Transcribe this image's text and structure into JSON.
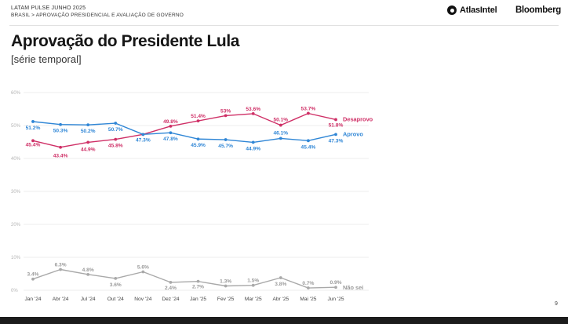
{
  "header": {
    "top": "LATAM PULSE JUNHO 2025",
    "breadcrumb": "BRASIL > APROVAÇÃO PRESIDENCIAL E AVALIAÇÃO DE GOVERNO",
    "logo_atlas": "AtlasIntel",
    "logo_bloomberg": "Bloomberg"
  },
  "title": "Aprovação do Presidente Lula",
  "subtitle": "[série temporal]",
  "page_number": "9",
  "colors": {
    "desaprovo": "#cf2f66",
    "aprovo": "#2f86d6",
    "nao_sei": "#a9a9a9",
    "grid": "#e7e7e7"
  },
  "chart_data": {
    "type": "line",
    "categories": [
      "Jan '24",
      "Abr '24",
      "Jul '24",
      "Out '24",
      "Nov '24",
      "Dez '24",
      "Jan '25",
      "Fev '25",
      "Mar '25",
      "Abr '25",
      "Mai '25",
      "Jun '25"
    ],
    "y_ticks": [
      "0%",
      "10%",
      "20%",
      "30%",
      "40%",
      "50%",
      "60%"
    ],
    "ylim": [
      0,
      60
    ],
    "grid": true,
    "legend": "right-end labels",
    "series": [
      {
        "name": "Desaprovo",
        "key": "desaprovo",
        "values": [
          45.4,
          43.4,
          44.9,
          45.8,
          47.3,
          49.8,
          51.4,
          53.0,
          53.6,
          50.1,
          53.7,
          51.8
        ],
        "labels": [
          "45.4%",
          "43.4%",
          "44.9%",
          "45.8%",
          "",
          "49.8%",
          "51.4%",
          "53%",
          "53.6%",
          "50.1%",
          "53.7%",
          "51.8%"
        ]
      },
      {
        "name": "Aprovo",
        "key": "aprovo",
        "values": [
          51.2,
          50.3,
          50.2,
          50.7,
          47.3,
          47.8,
          45.9,
          45.7,
          44.9,
          46.1,
          45.4,
          47.3
        ],
        "labels": [
          "51.2%",
          "50.3%",
          "50.2%",
          "50.7%",
          "47.3%",
          "47.8%",
          "45.9%",
          "45.7%",
          "44.9%",
          "46.1%",
          "45.4%",
          "47.3%"
        ]
      },
      {
        "name": "Não sei",
        "key": "nao_sei",
        "values": [
          3.4,
          6.3,
          4.8,
          3.6,
          5.6,
          2.4,
          2.7,
          1.3,
          1.5,
          3.8,
          0.7,
          0.9
        ],
        "labels": [
          "3.4%",
          "6.3%",
          "4.8%",
          "3.6%",
          "5.6%",
          "2.4%",
          "2.7%",
          "1.3%",
          "1.5%",
          "3.8%",
          "0.7%",
          "0.9%"
        ]
      }
    ]
  }
}
